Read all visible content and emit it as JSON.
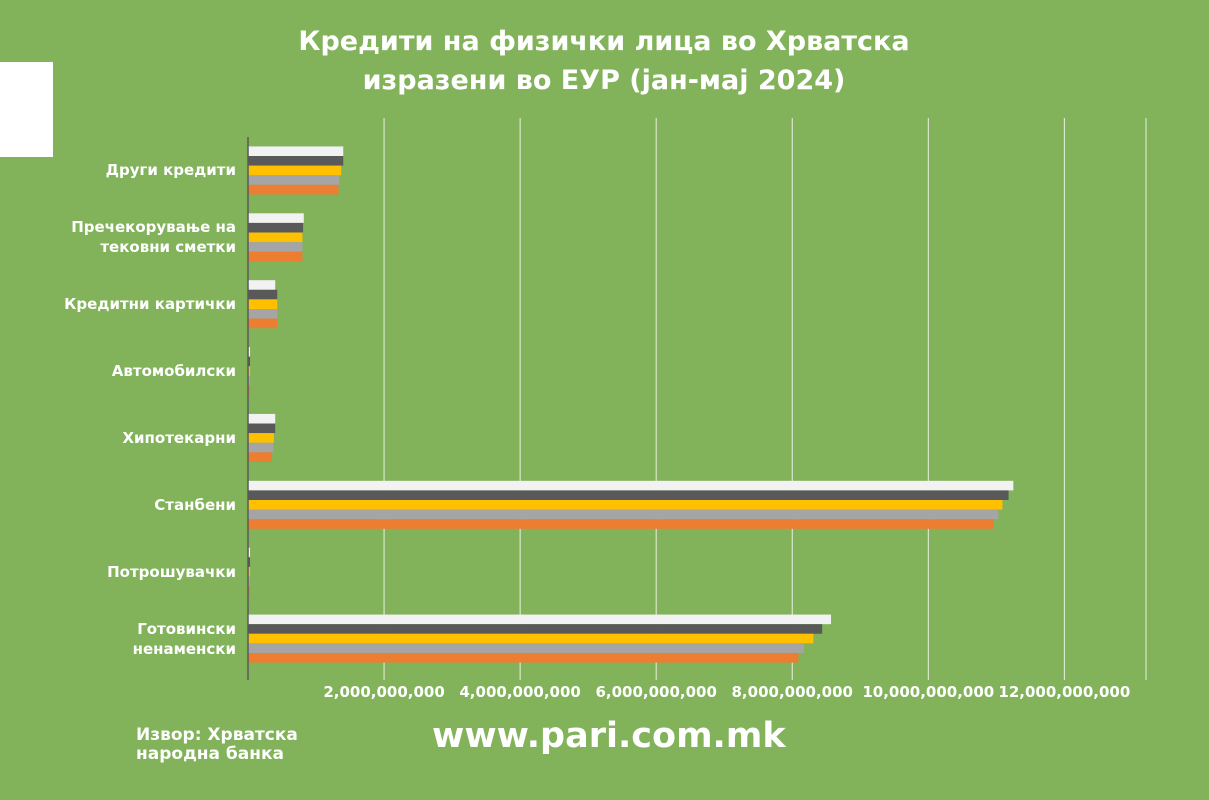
{
  "chart_data": {
    "type": "bar",
    "orientation": "horizontal",
    "title": "Кредити на физички лица во Хрватска изразени во ЕУР (јан-мај 2024)",
    "source": "Извор: Хрватска народна банка",
    "footer": "www.pari.com.mk",
    "categories": [
      "Други кредити",
      "Пречекорување на тековни сметки",
      "Кредитни картички",
      "Автомобилски",
      "Хипотекарни",
      "Станбени",
      "Потрошувачки",
      "Готовински ненаменски"
    ],
    "series": [
      {
        "color": "#f2f2f2",
        "values": [
          1400000000,
          820000000,
          400000000,
          30000000,
          400000000,
          11250000000,
          30000000,
          8570000000
        ]
      },
      {
        "color": "#595959",
        "values": [
          1400000000,
          810000000,
          430000000,
          30000000,
          400000000,
          11180000000,
          30000000,
          8440000000
        ]
      },
      {
        "color": "#ffc000",
        "values": [
          1370000000,
          800000000,
          430000000,
          30000000,
          380000000,
          11090000000,
          30000000,
          8310000000
        ]
      },
      {
        "color": "#a5a5a5",
        "values": [
          1340000000,
          800000000,
          430000000,
          30000000,
          370000000,
          11030000000,
          30000000,
          8170000000
        ]
      },
      {
        "color": "#ed7d31",
        "values": [
          1330000000,
          800000000,
          430000000,
          30000000,
          350000000,
          10960000000,
          30000000,
          8090000000
        ]
      }
    ],
    "xlim": [
      0,
      13200000000
    ],
    "xticks": [
      {
        "value": 2000000000,
        "label": "2,000,000,000"
      },
      {
        "value": 4000000000,
        "label": "4,000,000,000"
      },
      {
        "value": 6000000000,
        "label": "6,000,000,000"
      },
      {
        "value": 8000000000,
        "label": "8,000,000,000"
      },
      {
        "value": 10000000000,
        "label": "10,000,000,000"
      },
      {
        "value": 12000000000,
        "label": "12,000,000,000"
      }
    ],
    "grid": true
  }
}
